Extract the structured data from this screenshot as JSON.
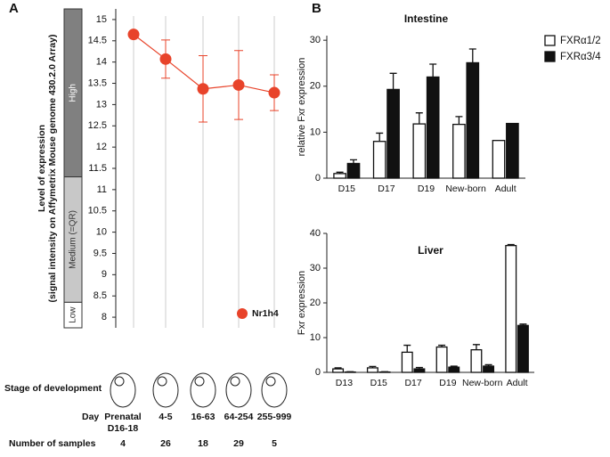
{
  "panel_labels": [
    "A",
    "B"
  ],
  "chart_data": [
    {
      "type": "line",
      "y_label": [
        "Level of expression",
        "(signal intensity on Affymetrix Mouse genome 430.2.0 Array)"
      ],
      "categories": [
        "Prenatal\nD16-18",
        "4-5",
        "16-63",
        "64-254",
        "255-999"
      ],
      "series": [
        {
          "name": "Nr1h4",
          "color": "#e8432a",
          "values": [
            14.65,
            14.07,
            13.37,
            13.46,
            13.28
          ],
          "errors": [
            0,
            0.45,
            0.78,
            0.81,
            0.42
          ]
        }
      ],
      "ylim": [
        7.75,
        15.25
      ],
      "yticks": [
        8,
        8.5,
        9,
        9.5,
        10,
        10.5,
        11,
        11.5,
        12,
        12.5,
        13,
        13.5,
        14,
        14.5,
        15
      ],
      "bands": [
        {
          "label": "High",
          "from": 11.3,
          "to": 15.25,
          "color": "#808080"
        },
        {
          "label": "Medium (=QR)",
          "from": 8.35,
          "to": 11.3,
          "color": "#c8c8c8"
        },
        {
          "label": "Low",
          "from": 7.75,
          "to": 8.35,
          "color": "#ffffff"
        }
      ],
      "stage_label": "Stage of development",
      "day_label": "Day",
      "samples_label": "Number of samples",
      "samples": [
        4,
        26,
        18,
        29,
        5
      ]
    },
    {
      "type": "bar",
      "title": "Intestine",
      "y_label": "relative Fxr expression",
      "categories": [
        "D15",
        "D17",
        "D19",
        "New-born",
        "Adult"
      ],
      "series": [
        {
          "name": "FXRα1/2",
          "color": "#ffffff",
          "values": [
            1,
            8,
            11.8,
            11.7,
            8.2
          ],
          "errors": [
            0.3,
            1.8,
            2.4,
            1.7,
            0
          ]
        },
        {
          "name": "FXRα3/4",
          "color": "#111111",
          "values": [
            3.2,
            19.3,
            22,
            25.1,
            11.9
          ],
          "errors": [
            0.8,
            3.5,
            2.8,
            3,
            0
          ]
        }
      ],
      "ylim": [
        0,
        31
      ],
      "yticks": [
        0,
        10,
        20,
        30
      ],
      "legend": true
    },
    {
      "type": "bar",
      "title": "Liver",
      "y_label": "Fxr expression",
      "categories": [
        "D13",
        "D15",
        "D17",
        "D19",
        "New-born",
        "Adult"
      ],
      "series": [
        {
          "color": "#ffffff",
          "values": [
            1,
            1.3,
            5.8,
            7.3,
            6.5,
            36.5
          ],
          "errors": [
            0.3,
            0.4,
            2,
            0.5,
            1.5,
            0.3
          ]
        },
        {
          "color": "#111111",
          "values": [
            0.1,
            0.1,
            1,
            1.5,
            1.8,
            13.5
          ],
          "errors": [
            0.1,
            0.1,
            0.4,
            0.3,
            0.4,
            0.4
          ]
        }
      ],
      "ylim": [
        0,
        40
      ],
      "yticks": [
        0,
        10,
        20,
        30,
        40
      ],
      "legend": false
    }
  ]
}
